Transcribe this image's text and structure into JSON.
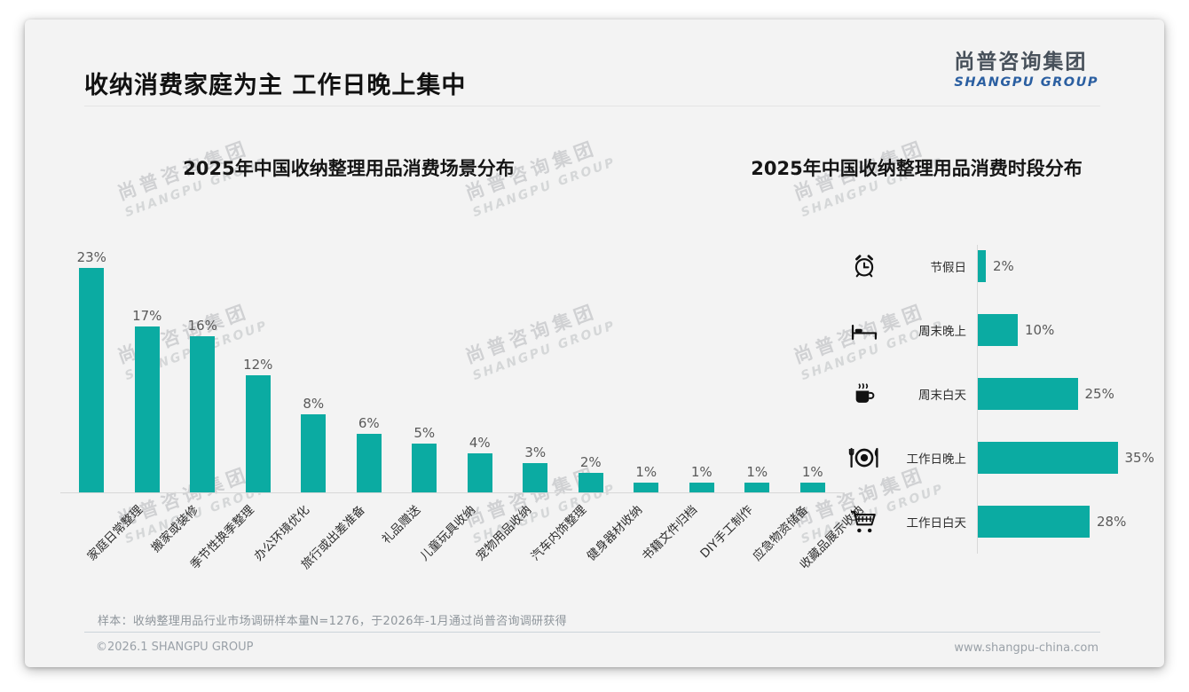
{
  "page": {
    "title": "收纳消费家庭为主 工作日晚上集中",
    "logo": {
      "cn": "尚普咨询集团",
      "en": "SHANGPU GROUP"
    },
    "watermark": {
      "cn": "尚普咨询集团",
      "en": "SHANGPU GROUP"
    },
    "note": "样本：收纳整理用品行业市场调研样本量N=1276，于2026年-1月通过尚普咨询调研获得",
    "footer": {
      "left": "©2026.1 SHANGPU GROUP",
      "right": "www.shangpu-china.com"
    },
    "colors": {
      "bar_teal": "#0BABA2",
      "logo_blue": "#2B5FA1",
      "logo_gray": "#47505A",
      "axis_gray": "#D8D8D8"
    }
  },
  "chart_data": [
    {
      "type": "bar",
      "orientation": "vertical",
      "title": "2025年中国收纳整理用品消费场景分布",
      "categories": [
        "家庭日常整理",
        "搬家或装修",
        "季节性换季整理",
        "办公环境优化",
        "旅行或出差准备",
        "礼品赠送",
        "儿童玩具收纳",
        "宠物用品收纳",
        "汽车内饰整理",
        "健身器材收纳",
        "书籍文件归档",
        "DIY手工制作",
        "应急物资储备",
        "收藏品展示收纳"
      ],
      "values": [
        23,
        17,
        16,
        12,
        8,
        6,
        5,
        4,
        3,
        2,
        1,
        1,
        1,
        1
      ],
      "unit": "%",
      "ylim": [
        0,
        25
      ],
      "grid": false,
      "legend": false,
      "bar_color": "#0BABA2"
    },
    {
      "type": "bar",
      "orientation": "horizontal",
      "title": "2025年中国收纳整理用品消费时段分布",
      "categories": [
        "节假日",
        "周末晚上",
        "周末白天",
        "工作日晚上",
        "工作日白天"
      ],
      "values": [
        2,
        10,
        25,
        35,
        28
      ],
      "icons": [
        "alarm-clock-icon",
        "bed-icon",
        "coffee-icon",
        "dining-icon",
        "cart-icon"
      ],
      "unit": "%",
      "xlim": [
        0,
        40
      ],
      "grid": false,
      "legend": false,
      "bar_color": "#0BABA2"
    }
  ]
}
